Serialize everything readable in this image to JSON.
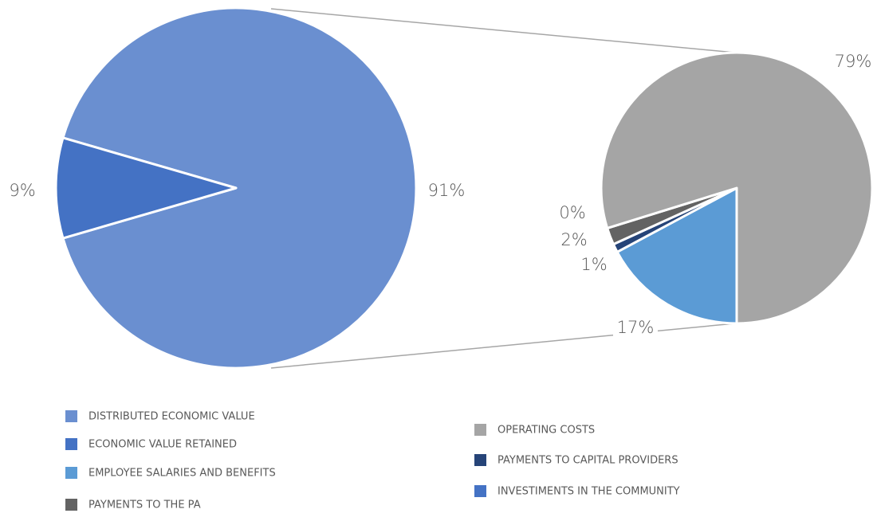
{
  "chart_data": [
    {
      "type": "pie",
      "categories": [
        "DISTRIBUTED ECONOMIC VALUE",
        "ECONOMIC VALUE RETAINED"
      ],
      "values": [
        91,
        9
      ],
      "value_labels": [
        "91%",
        "9%"
      ],
      "colors": [
        "#6a8fd0",
        "#4472c4"
      ]
    },
    {
      "type": "pie",
      "categories": [
        "EMPLOYEE SALARIES AND BENEFITS",
        "PAYMENTS TO CAPITAL PROVIDERS",
        "PAYMENTS TO THE PA",
        "INVESTIMENTS IN THE COMMUNITY",
        "OPERATING COSTS"
      ],
      "values": [
        17,
        1,
        2,
        0,
        79
      ],
      "value_labels": [
        "17%",
        "1%",
        "2%",
        "0%",
        "79%"
      ],
      "colors": [
        "#5b9bd5",
        "#264478",
        "#636363",
        "#4472c4",
        "#a5a5a5"
      ]
    }
  ]
}
